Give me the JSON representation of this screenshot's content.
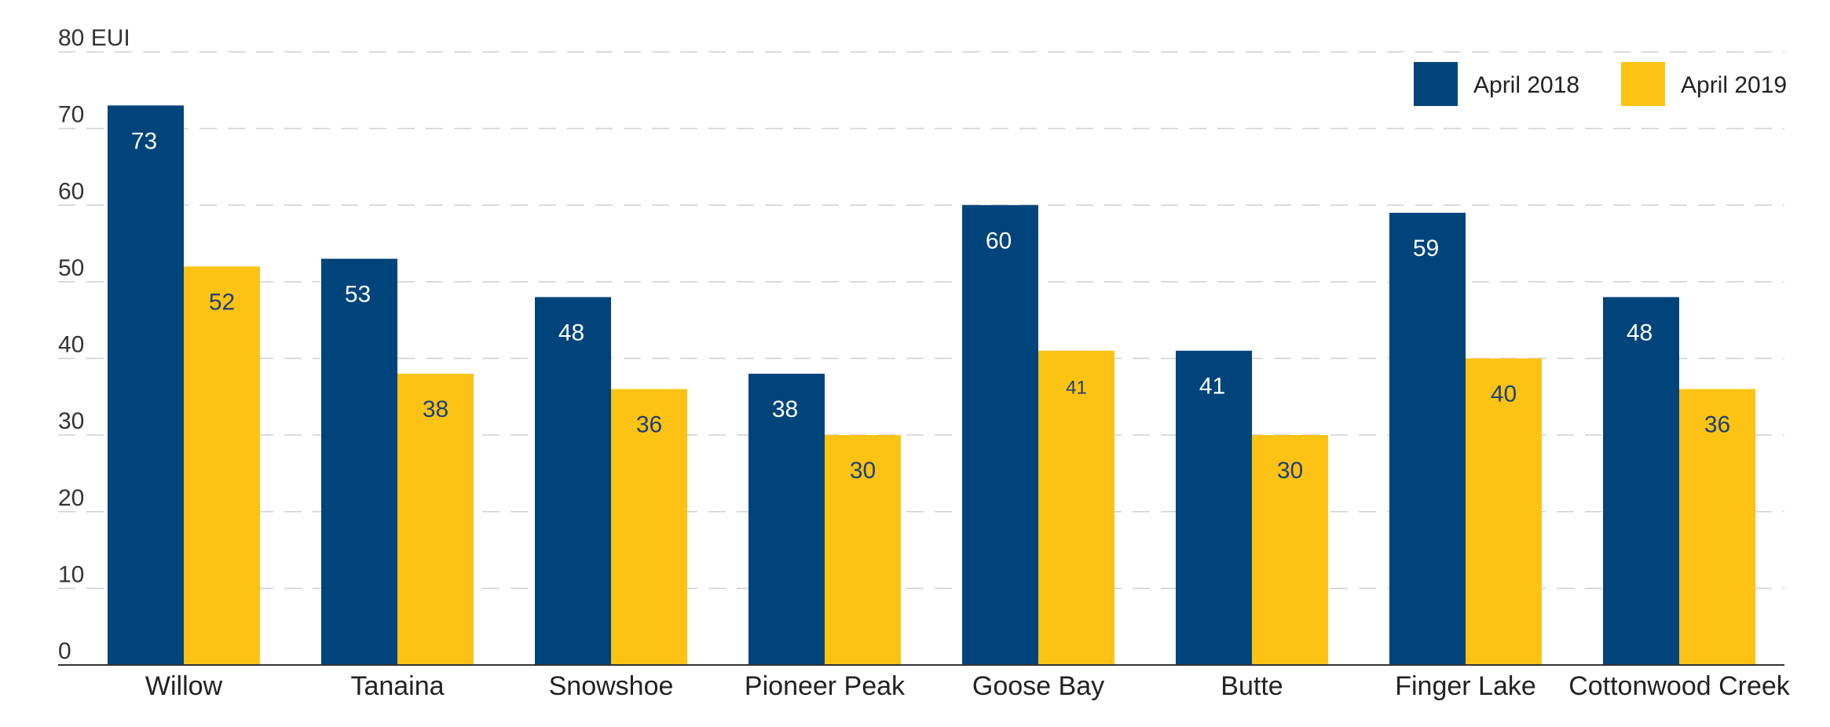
{
  "chart_data": {
    "type": "bar",
    "y_unit": "EUI",
    "ylim": [
      0,
      80
    ],
    "yticks": [
      0,
      10,
      20,
      30,
      40,
      50,
      60,
      70,
      80
    ],
    "ytick_labels": [
      "0",
      "10",
      "20",
      "30",
      "40",
      "50",
      "60",
      "70",
      "80 EUI"
    ],
    "grid": true,
    "legend_position": "top-right",
    "categories": [
      "Willow",
      "Tanaina",
      "Snowshoe",
      "Pioneer Peak",
      "Goose Bay",
      "Butte",
      "Finger Lake",
      "Cottonwood Creek"
    ],
    "series": [
      {
        "name": "April 2018",
        "color": "#00447c",
        "label_color": "#ffffff",
        "values": [
          73,
          53,
          48,
          38,
          60,
          41,
          59,
          48
        ]
      },
      {
        "name": "April 2019",
        "color": "#fcc314",
        "label_color": "#1f3f73",
        "values": [
          52,
          38,
          36,
          30,
          41,
          30,
          40,
          36
        ]
      }
    ]
  }
}
